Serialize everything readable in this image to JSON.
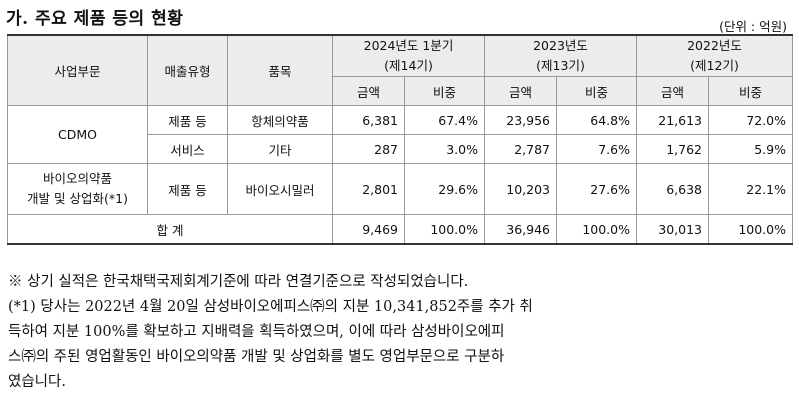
{
  "title": "가. 주요 제품 등의 현황",
  "unit": "(단위 : 억원)",
  "headers": {
    "division": "사업부문",
    "sales_type": "매출유형",
    "item": "품목",
    "periods": [
      {
        "line1": "2024년도 1분기",
        "line2": "(제14기)"
      },
      {
        "line1": "2023년도",
        "line2": "(제13기)"
      },
      {
        "line1": "2022년도",
        "line2": "(제12기)"
      }
    ],
    "amount": "금액",
    "ratio": "비중"
  },
  "rows": {
    "cdmo_label": "CDMO",
    "bio_label_1": "바이오의약품",
    "bio_label_2": "개발 및 상업화(*1)",
    "r1": {
      "type": "제품 등",
      "item": "항체의약품",
      "v": [
        "6,381",
        "67.4%",
        "23,956",
        "64.8%",
        "21,613",
        "72.0%"
      ]
    },
    "r2": {
      "type": "서비스",
      "item": "기타",
      "v": [
        "287",
        "3.0%",
        "2,787",
        "7.6%",
        "1,762",
        "5.9%"
      ]
    },
    "r3": {
      "type": "제품 등",
      "item": "바이오시밀러",
      "v": [
        "2,801",
        "29.6%",
        "10,203",
        "27.6%",
        "6,638",
        "22.1%"
      ]
    },
    "total": {
      "label": "합 계",
      "v": [
        "9,469",
        "100.0%",
        "36,946",
        "100.0%",
        "30,013",
        "100.0%"
      ]
    }
  },
  "notes": [
    "※ 상기 실적은 한국채택국제회계기준에 따라 연결기준으로 작성되었습니다.",
    "(*1) 당사는 2022년 4월 20일 삼성바이오에피스㈜의 지분 10,341,852주를 추가 취",
    "득하여 지분 100%를 확보하고 지배력을 획득하였으며, 이에 따라 삼성바이오에피",
    "스㈜의 주된 영업활동인 바이오의약품 개발 및 상업화를 별도 영업부문으로 구분하",
    "였습니다."
  ]
}
